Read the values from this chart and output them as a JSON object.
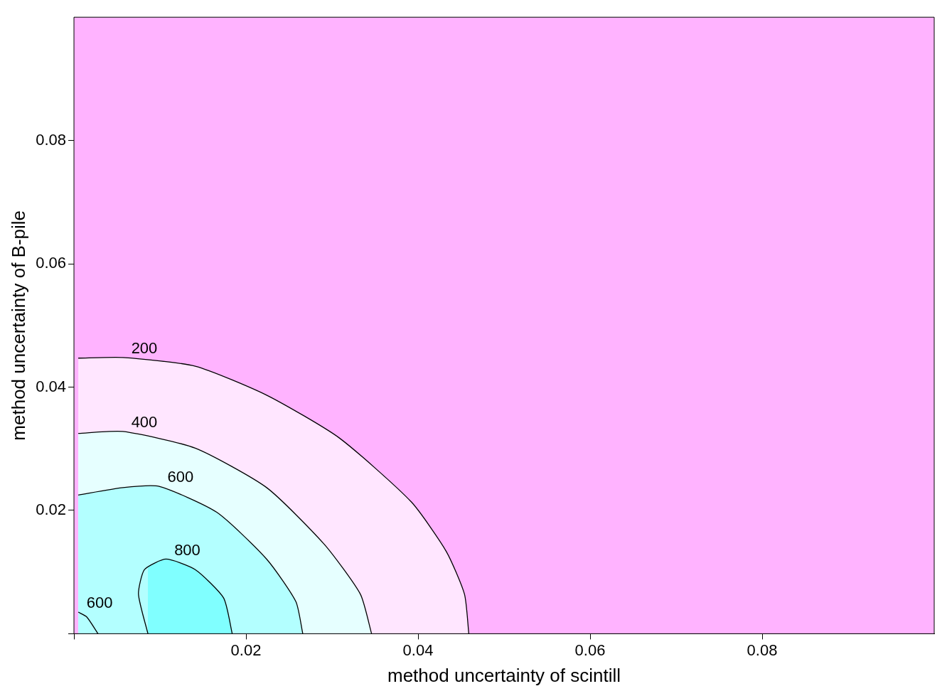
{
  "chart_data": {
    "type": "area",
    "xlabel": "method uncertainty of scintill",
    "ylabel": "method uncertainty of B-pile",
    "xlim": [
      0,
      0.1
    ],
    "ylim": [
      0,
      0.1
    ],
    "xticks": [
      {
        "value": 0,
        "label": null
      },
      0.02,
      0.04,
      0.06,
      0.08
    ],
    "yticks": [
      {
        "value": 0,
        "label": null
      },
      0.02,
      0.04,
      0.06,
      0.08
    ],
    "legend": false,
    "grid": false,
    "marker": "none",
    "line_style": "solid",
    "series": [
      {
        "name": "200",
        "color": "#ffe6ff",
        "x": [
          0.0005,
          0.0057,
          0.0141,
          0.0224,
          0.0308,
          0.0392,
          0.0433,
          0.0454,
          0.0459
        ],
        "values": [
          0.0447,
          0.0448,
          0.0434,
          0.0387,
          0.0318,
          0.0214,
          0.0133,
          0.0064,
          0
        ]
      },
      {
        "name": "400",
        "color": "#e6ffff",
        "x": [
          0.0005,
          0.0057,
          0.0141,
          0.0224,
          0.0291,
          0.0333,
          0.0346
        ],
        "values": [
          0.0325,
          0.0328,
          0.0301,
          0.0237,
          0.0145,
          0.0064,
          0
        ]
      },
      {
        "name": "600",
        "color": "#b3ffff",
        "x": [
          0.0005,
          0.0057,
          0.0099,
          0.0166,
          0.0224,
          0.0258,
          0.0266
        ],
        "values": [
          0.0225,
          0.0237,
          0.0239,
          0.0197,
          0.0121,
          0.0052,
          0
        ]
      },
      {
        "name": "800",
        "color": "#80ffff",
        "x": [
          0.0086,
          0.0075,
          0.0082,
          0.0107,
          0.0141,
          0.0174,
          0.0184
        ],
        "values": [
          0,
          0.0064,
          0.0104,
          0.0121,
          0.0104,
          0.0058,
          0
        ]
      },
      {
        "name": "600",
        "type": "line",
        "color": "#000000",
        "x": [
          0.0005,
          0.0015,
          0.0028
        ],
        "values": [
          0.0035,
          0.0027,
          0
        ]
      }
    ]
  }
}
